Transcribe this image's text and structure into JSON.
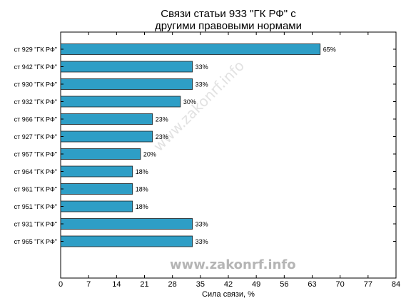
{
  "chart_data": {
    "type": "bar",
    "orientation": "horizontal",
    "title_lines": [
      "Связи статьи 933 \"ГК РФ\" с",
      "другими правовыми нормами"
    ],
    "xlabel": "Сила связи, %",
    "ylabel": "",
    "xlim": [
      0,
      84
    ],
    "xticks": [
      0,
      7,
      14,
      21,
      28,
      35,
      42,
      49,
      56,
      63,
      70,
      77,
      84
    ],
    "grid": false,
    "bar_color": "#2e9ec6",
    "categories": [
      "ст 929 \"ГК РФ\"",
      "ст 942 \"ГК РФ\"",
      "ст 930 \"ГК РФ\"",
      "ст 932 \"ГК РФ\"",
      "ст 966 \"ГК РФ\"",
      "ст 927 \"ГК РФ\"",
      "ст 957 \"ГК РФ\"",
      "ст 964 \"ГК РФ\"",
      "ст 961 \"ГК РФ\"",
      "ст 951 \"ГК РФ\"",
      "ст 931 \"ГК РФ\"",
      "ст 965 \"ГК РФ\""
    ],
    "values": [
      65,
      33,
      33,
      30,
      23,
      23,
      20,
      18,
      18,
      18,
      33,
      33
    ],
    "value_labels": [
      "65%",
      "33%",
      "33%",
      "30%",
      "23%",
      "23%",
      "20%",
      "18%",
      "18%",
      "18%",
      "33%",
      "33%"
    ]
  },
  "watermark": "www.zakonrf.info",
  "watermark_diagonal": "www.zakonrf.info"
}
